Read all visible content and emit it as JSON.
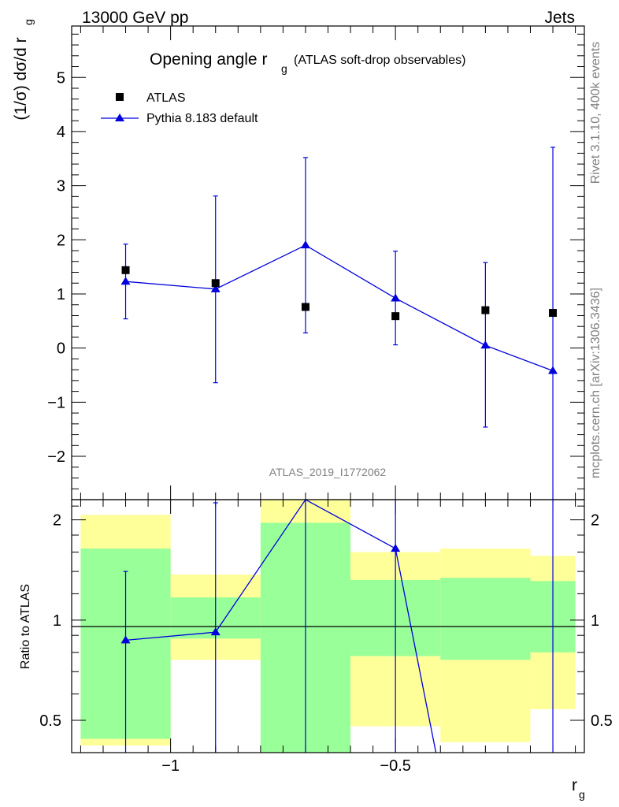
{
  "header": {
    "energy_label": "13000 GeV pp",
    "process_label": "Jets"
  },
  "side": {
    "generator_label": "Rivet 3.1.10,  400k events",
    "site_label": "mcplots.cern.ch [arXiv:1306.3436]"
  },
  "chart_data": [
    {
      "type": "scatter",
      "title_main": "Opening angle r",
      "title_sub": "g",
      "title_paren": "(ATLAS soft-drop observables)",
      "watermark": "ATLAS_2019_I1772062",
      "ylabel": "(1/σ) dσ/d r",
      "ylabel_sub": "g",
      "ylim": [
        -2.8,
        5.95
      ],
      "xlim": [
        -1.22,
        -0.08
      ],
      "yticks": [
        -2,
        -1,
        0,
        1,
        2,
        3,
        4,
        5
      ],
      "ytick_labels": [
        "−2",
        "−1",
        "0",
        "1",
        "2",
        "3",
        "4",
        "5"
      ],
      "legend": [
        {
          "name": "ATLAS",
          "marker": "square",
          "color": "#000000"
        },
        {
          "name": "Pythia 8.183 default",
          "marker": "triangle",
          "color": "#0000dd"
        }
      ],
      "series": [
        {
          "name": "ATLAS",
          "x": [
            -1.1,
            -0.9,
            -0.7,
            -0.5,
            -0.3,
            -0.15
          ],
          "y": [
            1.44,
            1.2,
            0.76,
            0.59,
            0.7,
            0.65
          ]
        },
        {
          "name": "Pythia 8.183 default",
          "x": [
            -1.1,
            -0.9,
            -0.7,
            -0.5,
            -0.3,
            -0.15
          ],
          "y": [
            1.23,
            1.09,
            1.9,
            0.92,
            0.05,
            -0.42
          ],
          "err_lo": [
            0.54,
            -0.64,
            0.28,
            0.06,
            -1.46,
            -2.8
          ],
          "err_hi": [
            1.92,
            2.81,
            3.52,
            1.79,
            1.58,
            3.71
          ]
        }
      ]
    },
    {
      "type": "ratio",
      "ylabel": "Ratio to ATLAS",
      "xlabel": "r",
      "xlabel_sub": "g",
      "ylim": [
        0.4,
        2.3
      ],
      "xlim": [
        -1.22,
        -0.08
      ],
      "yticks": [
        0.5,
        1,
        2
      ],
      "ytick_labels": [
        "0.5",
        "1",
        "2"
      ],
      "xticks": [
        -1,
        -0.5
      ],
      "xtick_labels": [
        "−1",
        "−0.5"
      ],
      "bands": [
        {
          "x_lo": -1.2,
          "x_hi": -1.0,
          "yellow": [
            0.42,
            2.07
          ],
          "green": [
            0.44,
            1.64
          ]
        },
        {
          "x_lo": -1.0,
          "x_hi": -0.8,
          "yellow": [
            0.76,
            1.37
          ],
          "green": [
            0.88,
            1.17
          ]
        },
        {
          "x_lo": -0.8,
          "x_hi": -0.6,
          "yellow": [
            0.4,
            2.3
          ],
          "green": [
            0.4,
            1.96
          ]
        },
        {
          "x_lo": -0.6,
          "x_hi": -0.4,
          "yellow": [
            0.48,
            1.6
          ],
          "green": [
            0.78,
            1.32
          ]
        },
        {
          "x_lo": -0.4,
          "x_hi": -0.2,
          "yellow": [
            0.43,
            1.64
          ],
          "green": [
            0.76,
            1.34
          ]
        },
        {
          "x_lo": -0.2,
          "x_hi": -0.1,
          "yellow": [
            0.54,
            1.56
          ],
          "green": [
            0.8,
            1.31
          ]
        }
      ],
      "series": [
        {
          "name": "Pythia 8.183 default",
          "x": [
            -1.1,
            -0.9,
            -0.7,
            -0.5,
            -0.41
          ],
          "y": [
            0.87,
            0.92,
            2.3,
            1.64,
            0.4
          ],
          "err_lo": [
            0.4,
            0.4,
            0.4,
            0.4,
            null
          ],
          "err_hi": [
            1.4,
            2.25,
            2.3,
            2.3,
            null
          ]
        }
      ]
    }
  ]
}
